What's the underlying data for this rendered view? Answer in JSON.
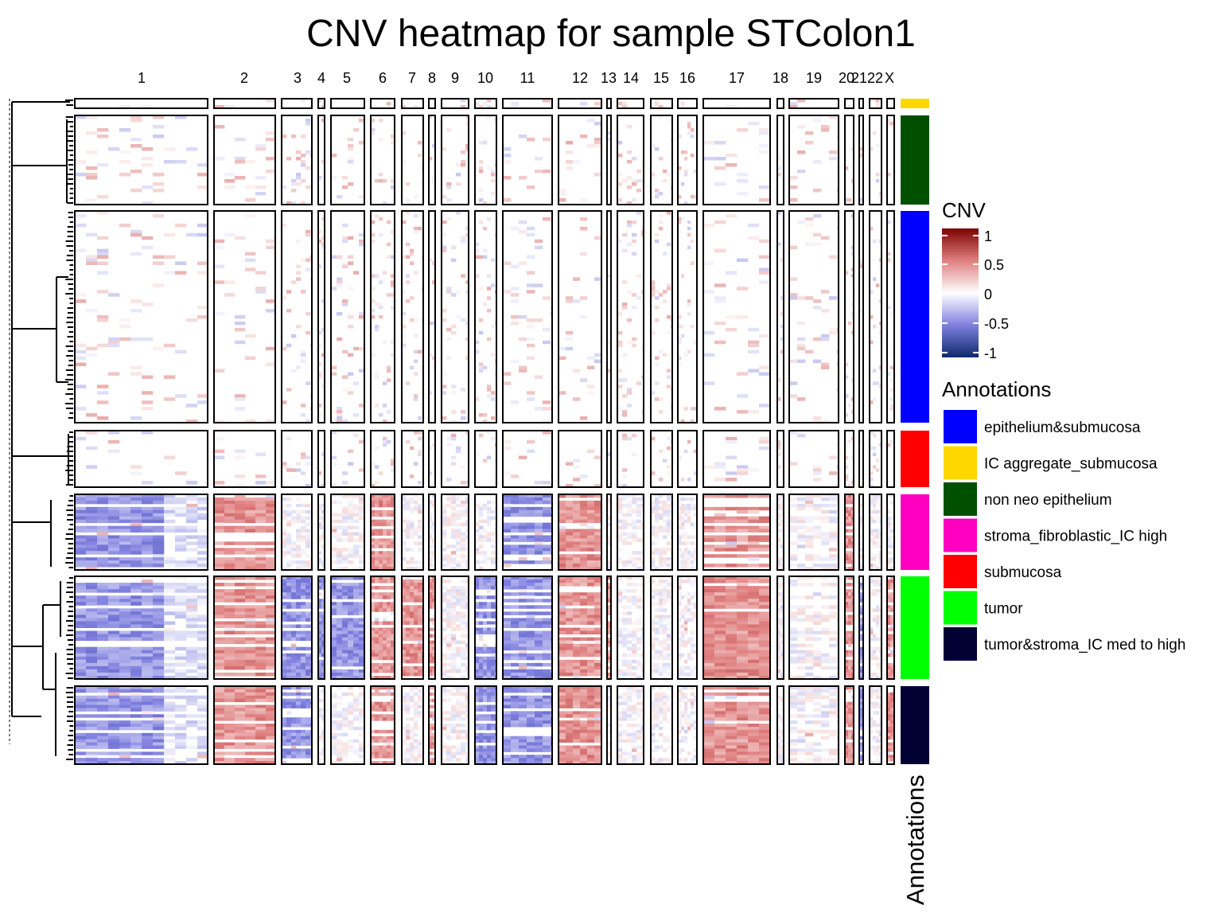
{
  "chart_data": {
    "type": "heatmap",
    "title": "CNV heatmap for sample STColon1",
    "chromosomes": [
      "1",
      "2",
      "3",
      "4",
      "5",
      "6",
      "7",
      "8",
      "9",
      "10",
      "11",
      "12",
      "13",
      "14",
      "15",
      "16",
      "17",
      "18",
      "19",
      "20",
      "21",
      "22",
      "X"
    ],
    "groups": [
      "IC aggregate_submucosa",
      "non neo epithelium",
      "epithelium&submucosa",
      "submucosa",
      "stroma_fibroblastic_IC high",
      "tumor",
      "tumor&stroma_IC med to high"
    ],
    "color_scale": {
      "title": "CNV",
      "range": [
        -1,
        1
      ],
      "ticks": [
        "1",
        "0.5",
        "0",
        "-0.5",
        "-1"
      ],
      "stops": [
        "#7f0000",
        "#e08080",
        "#ffffff",
        "#8080e0",
        "#0d2a6b"
      ]
    },
    "row_annotation": {
      "axis_label": "Annotations",
      "legend_title": "Annotations",
      "items": [
        {
          "label": "epithelium&submucosa",
          "color": "#0000ff"
        },
        {
          "label": "IC aggregate_submucosa",
          "color": "#ffd700"
        },
        {
          "label": "non neo epithelium",
          "color": "#005000"
        },
        {
          "label": "stroma_fibroblastic_IC high",
          "color": "#ff00c0"
        },
        {
          "label": "submucosa",
          "color": "#ff0000"
        },
        {
          "label": "tumor",
          "color": "#00ff00"
        },
        {
          "label": "tumor&stroma_IC med to high",
          "color": "#000033"
        }
      ]
    },
    "cnv_summary": [
      {
        "group": "tumor",
        "losses": [
          "1",
          "3",
          "4",
          "5",
          "10",
          "11",
          "21"
        ],
        "gains": [
          "2",
          "6",
          "7",
          "8",
          "12",
          "13",
          "17",
          "20",
          "X"
        ]
      },
      {
        "group": "tumor&stroma_IC med to high",
        "losses": [
          "1",
          "3",
          "10",
          "11",
          "21"
        ],
        "gains": [
          "2",
          "6",
          "8",
          "12",
          "17",
          "20",
          "X"
        ]
      },
      {
        "group": "stroma_fibroblastic_IC high",
        "losses": [
          "1",
          "11"
        ],
        "gains": [
          "2",
          "6",
          "12",
          "17",
          "20"
        ]
      }
    ]
  }
}
